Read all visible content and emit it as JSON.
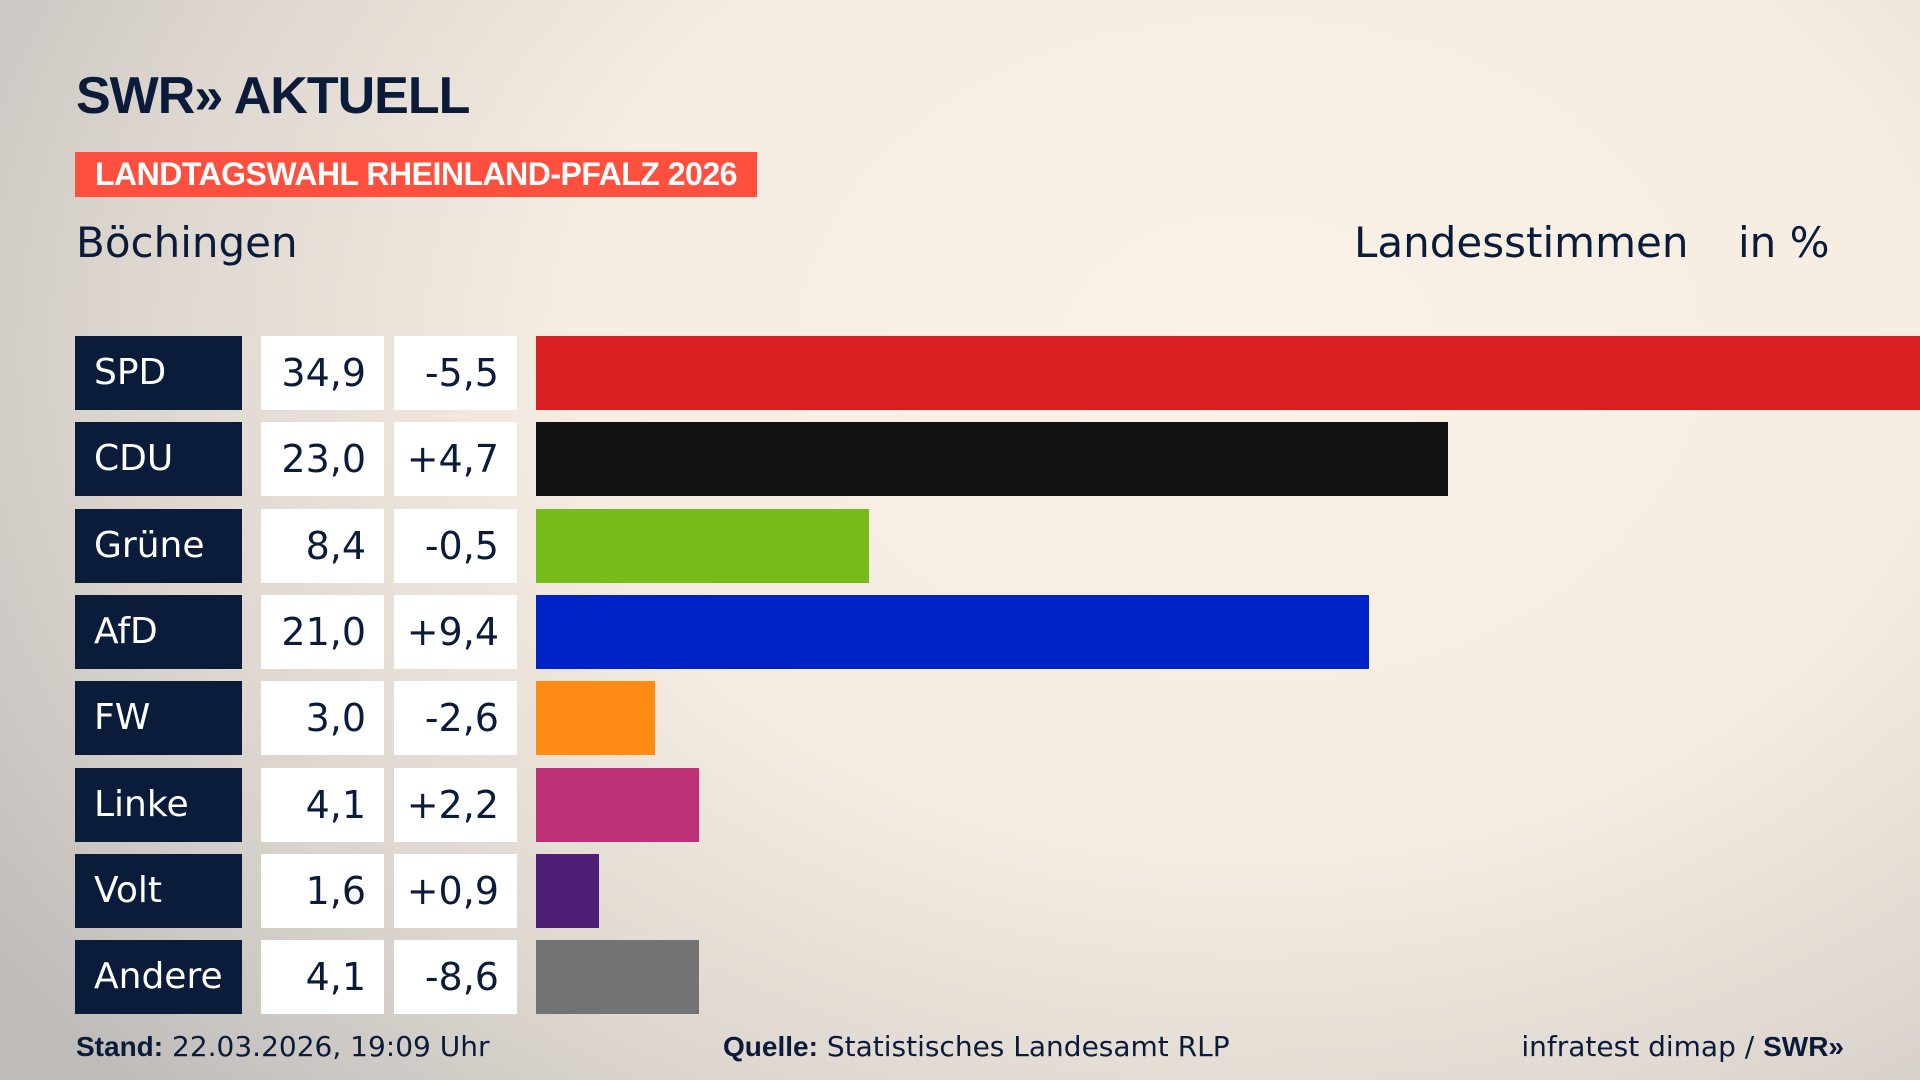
{
  "header": {
    "logo": "SWR» AKTUELL",
    "banner": "LANDTAGSWAHL RHEINLAND-PFALZ 2026",
    "place": "Böchingen",
    "vote_type": "Landesstimmen",
    "unit": "in %"
  },
  "chart_data": {
    "type": "bar",
    "orientation": "horizontal",
    "categories": [
      "SPD",
      "CDU",
      "Grüne",
      "AfD",
      "FW",
      "Linke",
      "Volt",
      "Andere"
    ],
    "values": [
      34.9,
      23.0,
      8.4,
      21.0,
      3.0,
      4.1,
      1.6,
      4.1
    ],
    "value_labels": [
      "34,9",
      "23,0",
      "8,4",
      "21,0",
      "3,0",
      "4,1",
      "1,6",
      "4,1"
    ],
    "diffs": [
      "-5,5",
      "+4,7",
      "-0,5",
      "+9,4",
      "-2,6",
      "+2,2",
      "+0,9",
      "-8,6"
    ],
    "colors": [
      "#d81f22",
      "#111111",
      "#78bc1b",
      "#0023c8",
      "#ff8a14",
      "#bc3075",
      "#4f1f75",
      "#737373"
    ],
    "xlim": [
      0,
      34.9
    ],
    "grid": false
  },
  "footer": {
    "stand_label": "Stand:",
    "stand_value": "22.03.2026, 19:09 Uhr",
    "source_label": "Quelle:",
    "source_value": "Statistisches Landesamt RLP",
    "credit": "infratest dimap / ",
    "credit_logo": "SWR»"
  }
}
